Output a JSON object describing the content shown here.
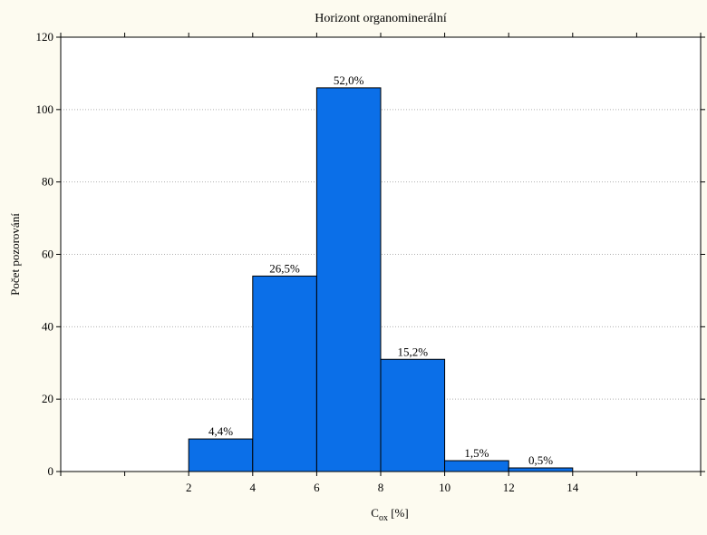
{
  "chart_data": {
    "type": "bar",
    "title": "Horizont organominerální",
    "ylabel": "Počet pozorování",
    "xlabel": {
      "main": "C",
      "sub": "ox",
      "suffix": " [%]"
    },
    "bin_edges": [
      2,
      4,
      6,
      8,
      10,
      12,
      14
    ],
    "values": [
      9,
      54,
      106,
      31,
      3,
      1
    ],
    "percent_labels": [
      "4,4%",
      "26,5%",
      "52,0%",
      "15,2%",
      "1,5%",
      "0,5%"
    ],
    "xlim": [
      -2,
      18
    ],
    "ylim": [
      0,
      120
    ],
    "x_ticks": [
      2,
      4,
      6,
      8,
      10,
      12,
      14
    ],
    "y_ticks": [
      0,
      20,
      40,
      60,
      80,
      100,
      120
    ],
    "grid": "horizontal dotted",
    "colors": {
      "bar_fill": "#0b6fe8",
      "bar_stroke": "#000000",
      "background": "#fdfbf0",
      "plot_background": "#ffffff",
      "grid": "#b0b0b0"
    }
  }
}
